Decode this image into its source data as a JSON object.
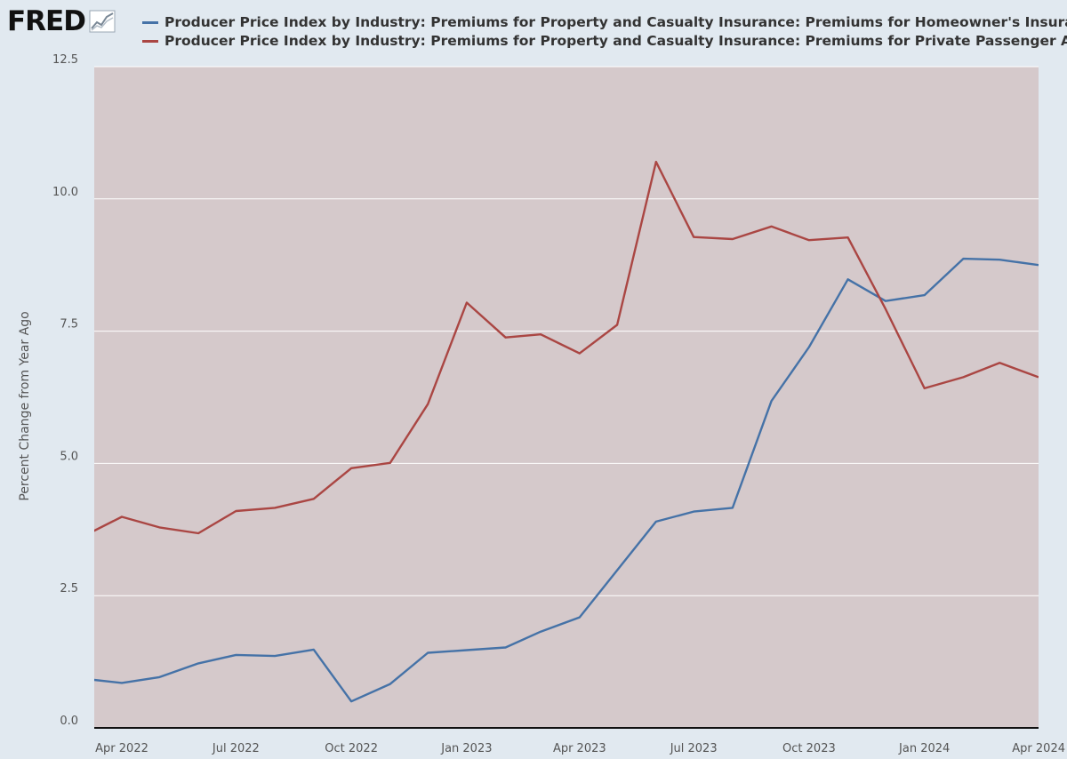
{
  "header": {
    "logo_text": "FRED",
    "logo_icon": "line-chart-icon"
  },
  "chart_data": {
    "type": "line",
    "title": "",
    "xlabel": "",
    "ylabel": "Percent Change from Year Ago",
    "ylim": [
      0,
      12.5
    ],
    "yticks": [
      "0.0",
      "2.5",
      "5.0",
      "7.5",
      "10.0",
      "12.5"
    ],
    "xlim": [
      "2022-03-10",
      "2024-04-01"
    ],
    "xticks": [
      {
        "label": "Apr 2022",
        "date": "2022-04-01"
      },
      {
        "label": "Jul 2022",
        "date": "2022-07-01"
      },
      {
        "label": "Oct 2022",
        "date": "2022-10-01"
      },
      {
        "label": "Jan 2023",
        "date": "2023-01-01"
      },
      {
        "label": "Apr 2023",
        "date": "2023-04-01"
      },
      {
        "label": "Jul 2023",
        "date": "2023-07-01"
      },
      {
        "label": "Oct 2023",
        "date": "2023-10-01"
      },
      {
        "label": "Jan 2024",
        "date": "2024-01-01"
      },
      {
        "label": "Apr 2024",
        "date": "2024-04-01"
      }
    ],
    "grid": true,
    "legend_position": "top",
    "series": [
      {
        "name": "Producer Price Index by Industry: Premiums for Property and Casualty Insurance: Premiums for Homeowner's Insuran",
        "color": "#4572a7",
        "points": [
          {
            "x": "2022-03-01",
            "y": 0.93
          },
          {
            "x": "2022-04-01",
            "y": 0.85
          },
          {
            "x": "2022-05-01",
            "y": 0.96
          },
          {
            "x": "2022-06-01",
            "y": 1.22
          },
          {
            "x": "2022-07-01",
            "y": 1.38
          },
          {
            "x": "2022-08-01",
            "y": 1.36
          },
          {
            "x": "2022-09-01",
            "y": 1.48
          },
          {
            "x": "2022-10-01",
            "y": 0.5
          },
          {
            "x": "2022-11-01",
            "y": 0.83
          },
          {
            "x": "2022-12-01",
            "y": 1.42
          },
          {
            "x": "2023-01-01",
            "y": 1.47
          },
          {
            "x": "2023-02-01",
            "y": 1.52
          },
          {
            "x": "2023-03-01",
            "y": 1.82
          },
          {
            "x": "2023-04-01",
            "y": 2.09
          },
          {
            "x": "2023-05-01",
            "y": 2.98
          },
          {
            "x": "2023-06-01",
            "y": 3.9
          },
          {
            "x": "2023-07-01",
            "y": 4.09
          },
          {
            "x": "2023-08-01",
            "y": 4.16
          },
          {
            "x": "2023-09-01",
            "y": 6.18
          },
          {
            "x": "2023-10-01",
            "y": 7.2
          },
          {
            "x": "2023-11-01",
            "y": 8.48
          },
          {
            "x": "2023-12-01",
            "y": 8.07
          },
          {
            "x": "2024-01-01",
            "y": 8.18
          },
          {
            "x": "2024-02-01",
            "y": 8.87
          },
          {
            "x": "2024-03-01",
            "y": 8.85
          },
          {
            "x": "2024-04-01",
            "y": 8.75
          }
        ]
      },
      {
        "name": "Producer Price Index by Industry: Premiums for Property and Casualty Insurance: Premiums for Private Passenger Aut",
        "color": "#aa4643",
        "points": [
          {
            "x": "2022-03-01",
            "y": 3.62
          },
          {
            "x": "2022-04-01",
            "y": 3.99
          },
          {
            "x": "2022-05-01",
            "y": 3.79
          },
          {
            "x": "2022-06-01",
            "y": 3.68
          },
          {
            "x": "2022-07-01",
            "y": 4.1
          },
          {
            "x": "2022-08-01",
            "y": 4.16
          },
          {
            "x": "2022-09-01",
            "y": 4.33
          },
          {
            "x": "2022-10-01",
            "y": 4.91
          },
          {
            "x": "2022-11-01",
            "y": 5.01
          },
          {
            "x": "2022-12-01",
            "y": 6.12
          },
          {
            "x": "2023-01-01",
            "y": 8.04
          },
          {
            "x": "2023-02-01",
            "y": 7.38
          },
          {
            "x": "2023-03-01",
            "y": 7.44
          },
          {
            "x": "2023-04-01",
            "y": 7.08
          },
          {
            "x": "2023-05-01",
            "y": 7.62
          },
          {
            "x": "2023-06-01",
            "y": 10.7
          },
          {
            "x": "2023-07-01",
            "y": 9.28
          },
          {
            "x": "2023-08-01",
            "y": 9.24
          },
          {
            "x": "2023-09-01",
            "y": 9.48
          },
          {
            "x": "2023-10-01",
            "y": 9.22
          },
          {
            "x": "2023-11-01",
            "y": 9.27
          },
          {
            "x": "2023-12-01",
            "y": 7.92
          },
          {
            "x": "2024-01-01",
            "y": 6.42
          },
          {
            "x": "2024-02-01",
            "y": 6.63
          },
          {
            "x": "2024-03-01",
            "y": 6.9
          },
          {
            "x": "2024-04-01",
            "y": 6.63
          }
        ]
      }
    ]
  }
}
